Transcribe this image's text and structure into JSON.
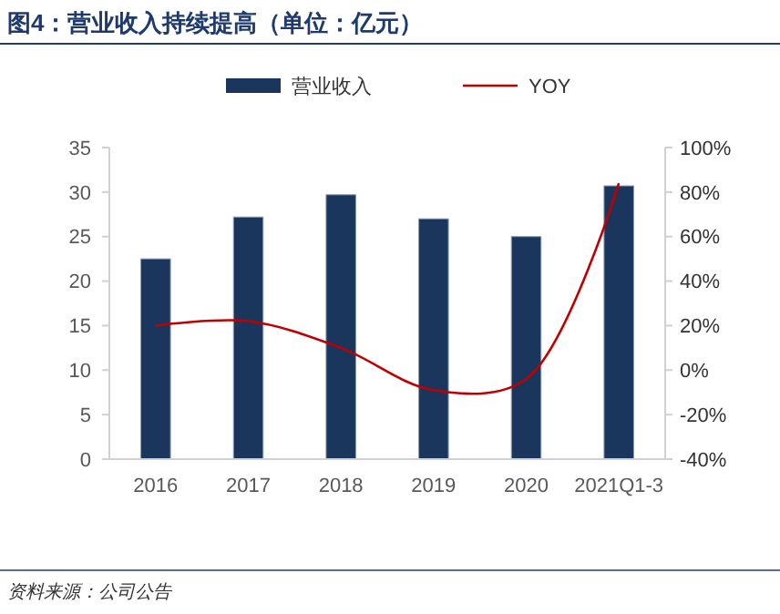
{
  "chart_data": {
    "type": "bar",
    "title": "图4：营业收入持续提高（单位：亿元）",
    "categories": [
      "2016",
      "2017",
      "2018",
      "2019",
      "2020",
      "2021Q1-3"
    ],
    "series": [
      {
        "name": "营业收入",
        "color": "#1a365d",
        "values": [
          22.5,
          27.2,
          29.7,
          27.0,
          25.0,
          30.7
        ]
      },
      {
        "name": "YOY",
        "type": "line",
        "axis": "y2",
        "color": "#c00000",
        "values": [
          20,
          22,
          10,
          -9,
          -4,
          84
        ]
      }
    ],
    "ylim": [
      0,
      35
    ],
    "yticks": [
      0,
      5,
      10,
      15,
      20,
      25,
      30,
      35
    ],
    "y2lim": [
      -40,
      100
    ],
    "y2ticks": [
      {
        "value": -40,
        "label": "-40%"
      },
      {
        "value": -20,
        "label": "-20%"
      },
      {
        "value": 0,
        "label": "0%"
      },
      {
        "value": 20,
        "label": "20%"
      },
      {
        "value": 40,
        "label": "40%"
      },
      {
        "value": 60,
        "label": "60%"
      },
      {
        "value": 80,
        "label": "80%"
      },
      {
        "value": 100,
        "label": "100%"
      }
    ],
    "legend": "top",
    "grid": false,
    "annotations": [
      "资料来源：公司公告"
    ]
  }
}
